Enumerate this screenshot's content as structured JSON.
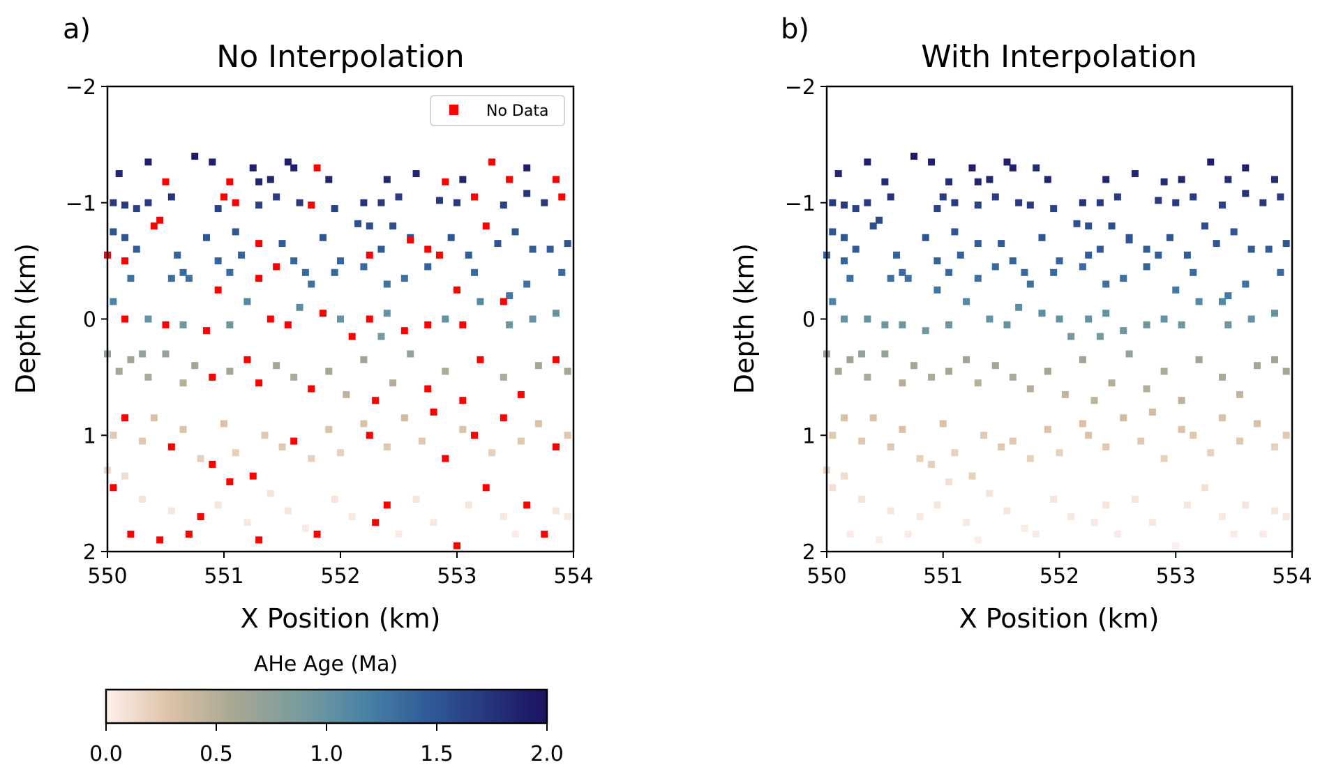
{
  "chart_data": {
    "type": "scatter",
    "panels": [
      {
        "label": "a)",
        "title": "No Interpolation",
        "show_nodata": true
      },
      {
        "label": "b)",
        "title": "With Interpolation",
        "show_nodata": false
      }
    ],
    "xlabel": "X Position (km)",
    "ylabel": "Depth (km)",
    "xlim": [
      550,
      554
    ],
    "ylim": [
      -2,
      2
    ],
    "y_inverted": true,
    "xticks": [
      "550",
      "551",
      "552",
      "553",
      "554"
    ],
    "yticks": [
      "−2",
      "−1",
      "0",
      "1",
      "2"
    ],
    "grid": false,
    "legend": {
      "label": "No Data",
      "color": "#ff0000",
      "placement": "top-right"
    },
    "colorbar": {
      "label": "AHe Age (Ma)",
      "range": [
        0,
        2
      ],
      "ticks": [
        "0.0",
        "0.5",
        "1.0",
        "1.5",
        "2.0"
      ],
      "stops": [
        "#fdf0ec",
        "#ddc2a8",
        "#a9a893",
        "#7c9d9c",
        "#4d86a6",
        "#31609a",
        "#27387f",
        "#1a1260"
      ],
      "placement": "bottom-left"
    },
    "points_format": [
      "x_km",
      "depth_km",
      "age_Ma",
      "no_data"
    ],
    "points": [
      [
        550.1,
        -1.25,
        1.85,
        0
      ],
      [
        550.35,
        -1.35,
        1.9,
        0
      ],
      [
        550.75,
        -1.4,
        1.95,
        0
      ],
      [
        550.9,
        -1.35,
        1.9,
        0
      ],
      [
        551.05,
        -1.18,
        1.8,
        1
      ],
      [
        551.25,
        -1.3,
        1.9,
        0
      ],
      [
        551.3,
        -1.18,
        1.85,
        0
      ],
      [
        551.4,
        -1.2,
        1.85,
        0
      ],
      [
        551.55,
        -1.35,
        1.9,
        0
      ],
      [
        551.6,
        -1.3,
        1.9,
        0
      ],
      [
        551.8,
        -1.3,
        1.8,
        1
      ],
      [
        551.9,
        -1.2,
        1.85,
        0
      ],
      [
        552.2,
        -1.0,
        1.75,
        0
      ],
      [
        552.4,
        -1.2,
        1.85,
        0
      ],
      [
        552.65,
        -1.25,
        1.85,
        0
      ],
      [
        552.9,
        -1.18,
        1.8,
        1
      ],
      [
        553.05,
        -1.2,
        1.85,
        0
      ],
      [
        553.3,
        -1.35,
        1.9,
        1
      ],
      [
        553.45,
        -1.2,
        1.8,
        1
      ],
      [
        553.6,
        -1.3,
        1.9,
        0
      ],
      [
        553.85,
        -1.2,
        1.8,
        1
      ],
      [
        550.5,
        -1.18,
        1.8,
        1
      ],
      [
        551.0,
        -1.05,
        1.7,
        1
      ],
      [
        550.05,
        -1.0,
        1.7,
        0
      ],
      [
        550.15,
        -0.98,
        1.7,
        0
      ],
      [
        550.25,
        -0.95,
        1.65,
        0
      ],
      [
        550.35,
        -1.0,
        1.7,
        0
      ],
      [
        550.45,
        -0.85,
        1.6,
        1
      ],
      [
        550.55,
        -1.05,
        1.75,
        0
      ],
      [
        550.95,
        -0.95,
        1.65,
        0
      ],
      [
        551.1,
        -1.0,
        1.7,
        1
      ],
      [
        551.3,
        -0.98,
        1.65,
        0
      ],
      [
        551.45,
        -1.05,
        1.7,
        0
      ],
      [
        551.65,
        -1.0,
        1.7,
        0
      ],
      [
        551.75,
        -0.98,
        1.7,
        1
      ],
      [
        551.95,
        -0.95,
        1.65,
        0
      ],
      [
        552.35,
        -1.0,
        1.7,
        0
      ],
      [
        552.5,
        -1.05,
        1.7,
        0
      ],
      [
        552.85,
        -1.02,
        1.7,
        0
      ],
      [
        553.0,
        -1.0,
        1.7,
        0
      ],
      [
        553.15,
        -1.05,
        1.7,
        1
      ],
      [
        553.6,
        -1.08,
        1.75,
        0
      ],
      [
        553.75,
        -1.0,
        1.7,
        0
      ],
      [
        553.9,
        -1.05,
        1.7,
        1
      ],
      [
        553.4,
        -0.98,
        1.65,
        0
      ],
      [
        550.05,
        -0.75,
        1.5,
        0
      ],
      [
        550.15,
        -0.7,
        1.5,
        0
      ],
      [
        550.25,
        -0.6,
        1.45,
        0
      ],
      [
        550.4,
        -0.8,
        1.55,
        1
      ],
      [
        550.6,
        -0.55,
        1.4,
        0
      ],
      [
        550.7,
        -0.35,
        1.3,
        0
      ],
      [
        550.85,
        -0.7,
        1.5,
        0
      ],
      [
        550.95,
        -0.5,
        1.4,
        0
      ],
      [
        551.1,
        -0.75,
        1.5,
        0
      ],
      [
        551.15,
        -0.55,
        1.4,
        0
      ],
      [
        551.3,
        -0.65,
        1.45,
        1
      ],
      [
        551.5,
        -0.65,
        1.45,
        0
      ],
      [
        551.6,
        -0.5,
        1.4,
        0
      ],
      [
        551.75,
        -0.3,
        1.3,
        0
      ],
      [
        551.85,
        -0.7,
        1.5,
        0
      ],
      [
        552.0,
        -0.5,
        1.4,
        0
      ],
      [
        552.15,
        -0.82,
        1.55,
        0
      ],
      [
        552.25,
        -0.8,
        1.55,
        0
      ],
      [
        552.35,
        -0.6,
        1.45,
        0
      ],
      [
        552.45,
        -0.8,
        1.55,
        0
      ],
      [
        552.6,
        -0.7,
        1.5,
        0
      ],
      [
        552.75,
        -0.45,
        1.4,
        0
      ],
      [
        552.85,
        -0.55,
        1.45,
        1
      ],
      [
        552.95,
        -0.7,
        1.5,
        0
      ],
      [
        553.1,
        -0.55,
        1.45,
        0
      ],
      [
        553.25,
        -0.8,
        1.55,
        1
      ],
      [
        553.35,
        -0.65,
        1.5,
        0
      ],
      [
        553.5,
        -0.75,
        1.5,
        0
      ],
      [
        553.65,
        -0.6,
        1.45,
        0
      ],
      [
        553.8,
        -0.6,
        1.45,
        0
      ],
      [
        553.95,
        -0.65,
        1.5,
        0
      ],
      [
        550.0,
        -0.55,
        1.4,
        1
      ],
      [
        550.15,
        -0.5,
        1.4,
        1
      ],
      [
        550.2,
        -0.35,
        1.3,
        0
      ],
      [
        550.55,
        -0.35,
        1.3,
        0
      ],
      [
        550.65,
        -0.4,
        1.35,
        0
      ],
      [
        550.95,
        -0.25,
        1.25,
        1
      ],
      [
        551.05,
        -0.4,
        1.35,
        0
      ],
      [
        551.3,
        -0.35,
        1.3,
        1
      ],
      [
        551.45,
        -0.45,
        1.35,
        1
      ],
      [
        551.7,
        -0.4,
        1.35,
        0
      ],
      [
        551.95,
        -0.4,
        1.35,
        0
      ],
      [
        552.2,
        -0.45,
        1.35,
        0
      ],
      [
        552.4,
        -0.3,
        1.3,
        0
      ],
      [
        552.55,
        -0.35,
        1.3,
        0
      ],
      [
        552.75,
        -0.6,
        1.45,
        1
      ],
      [
        553.0,
        -0.25,
        1.25,
        1
      ],
      [
        553.15,
        -0.4,
        1.35,
        0
      ],
      [
        553.45,
        -0.2,
        1.25,
        0
      ],
      [
        553.6,
        -0.3,
        1.3,
        0
      ],
      [
        553.9,
        -0.4,
        1.35,
        0
      ],
      [
        552.25,
        -0.55,
        1.45,
        1
      ],
      [
        552.6,
        -0.68,
        1.5,
        1
      ],
      [
        550.05,
        -0.15,
        1.15,
        0
      ],
      [
        550.15,
        0.0,
        1.0,
        1
      ],
      [
        550.35,
        0.0,
        1.0,
        0
      ],
      [
        550.5,
        0.05,
        0.95,
        1
      ],
      [
        550.65,
        0.05,
        0.95,
        0
      ],
      [
        550.85,
        0.1,
        0.9,
        1
      ],
      [
        551.05,
        0.05,
        0.95,
        0
      ],
      [
        551.2,
        -0.15,
        1.1,
        0
      ],
      [
        551.4,
        0.0,
        1.0,
        1
      ],
      [
        551.55,
        0.05,
        1.0,
        1
      ],
      [
        551.65,
        -0.1,
        1.05,
        0
      ],
      [
        551.85,
        -0.05,
        1.05,
        1
      ],
      [
        552.0,
        0.0,
        1.0,
        0
      ],
      [
        552.1,
        0.15,
        0.9,
        1
      ],
      [
        552.25,
        0.0,
        1.0,
        1
      ],
      [
        552.4,
        -0.05,
        1.0,
        0
      ],
      [
        552.55,
        0.1,
        0.95,
        1
      ],
      [
        552.75,
        0.05,
        0.95,
        1
      ],
      [
        552.9,
        0.0,
        1.0,
        0
      ],
      [
        553.05,
        0.05,
        0.95,
        1
      ],
      [
        553.2,
        -0.15,
        1.1,
        0
      ],
      [
        553.45,
        0.05,
        0.95,
        0
      ],
      [
        553.65,
        0.0,
        1.0,
        0
      ],
      [
        553.85,
        -0.05,
        1.0,
        0
      ],
      [
        552.35,
        0.15,
        0.9,
        0
      ],
      [
        553.4,
        -0.15,
        1.1,
        1
      ],
      [
        550.0,
        0.3,
        0.7,
        0
      ],
      [
        550.1,
        0.45,
        0.6,
        0
      ],
      [
        550.2,
        0.35,
        0.65,
        0
      ],
      [
        550.35,
        0.5,
        0.55,
        0
      ],
      [
        550.5,
        0.3,
        0.7,
        0
      ],
      [
        550.65,
        0.55,
        0.5,
        0
      ],
      [
        550.75,
        0.4,
        0.6,
        0
      ],
      [
        550.9,
        0.5,
        0.55,
        1
      ],
      [
        551.05,
        0.45,
        0.6,
        0
      ],
      [
        551.2,
        0.35,
        0.65,
        1
      ],
      [
        551.3,
        0.55,
        0.5,
        1
      ],
      [
        551.45,
        0.4,
        0.6,
        0
      ],
      [
        551.6,
        0.5,
        0.55,
        0
      ],
      [
        551.75,
        0.6,
        0.5,
        1
      ],
      [
        551.9,
        0.45,
        0.6,
        0
      ],
      [
        552.05,
        0.65,
        0.45,
        0
      ],
      [
        552.2,
        0.35,
        0.65,
        0
      ],
      [
        552.3,
        0.7,
        0.45,
        1
      ],
      [
        552.45,
        0.55,
        0.5,
        0
      ],
      [
        552.6,
        0.3,
        0.7,
        0
      ],
      [
        552.75,
        0.6,
        0.5,
        1
      ],
      [
        552.9,
        0.45,
        0.55,
        0
      ],
      [
        553.05,
        0.7,
        0.45,
        1
      ],
      [
        553.2,
        0.35,
        0.65,
        1
      ],
      [
        553.4,
        0.5,
        0.55,
        0
      ],
      [
        553.55,
        0.65,
        0.45,
        1
      ],
      [
        553.7,
        0.4,
        0.6,
        0
      ],
      [
        553.85,
        0.35,
        0.65,
        1
      ],
      [
        553.95,
        0.45,
        0.6,
        0
      ],
      [
        550.3,
        0.3,
        0.7,
        0
      ],
      [
        550.05,
        1.0,
        0.25,
        0
      ],
      [
        550.15,
        0.85,
        0.3,
        1
      ],
      [
        550.3,
        1.05,
        0.25,
        0
      ],
      [
        550.4,
        0.85,
        0.3,
        0
      ],
      [
        550.55,
        1.1,
        0.25,
        1
      ],
      [
        550.65,
        0.95,
        0.3,
        0
      ],
      [
        550.8,
        1.2,
        0.2,
        0
      ],
      [
        550.9,
        1.25,
        0.2,
        1
      ],
      [
        551.0,
        0.9,
        0.3,
        0
      ],
      [
        551.1,
        1.15,
        0.2,
        0
      ],
      [
        551.25,
        1.35,
        0.2,
        1
      ],
      [
        551.35,
        1.0,
        0.25,
        0
      ],
      [
        551.5,
        1.1,
        0.25,
        0
      ],
      [
        551.6,
        1.05,
        0.25,
        1
      ],
      [
        551.75,
        1.2,
        0.2,
        0
      ],
      [
        551.9,
        0.95,
        0.3,
        0
      ],
      [
        552.0,
        1.15,
        0.2,
        0
      ],
      [
        552.2,
        0.9,
        0.3,
        0
      ],
      [
        552.25,
        1.0,
        0.3,
        1
      ],
      [
        552.4,
        1.1,
        0.25,
        0
      ],
      [
        552.55,
        0.85,
        0.35,
        0
      ],
      [
        552.7,
        1.05,
        0.25,
        0
      ],
      [
        552.8,
        0.8,
        0.35,
        1
      ],
      [
        552.9,
        1.2,
        0.2,
        1
      ],
      [
        553.05,
        0.95,
        0.3,
        0
      ],
      [
        553.15,
        1.0,
        0.25,
        1
      ],
      [
        553.3,
        1.15,
        0.2,
        0
      ],
      [
        553.4,
        0.85,
        0.3,
        1
      ],
      [
        553.55,
        1.05,
        0.25,
        0
      ],
      [
        553.7,
        0.9,
        0.3,
        0
      ],
      [
        553.85,
        1.1,
        0.2,
        1
      ],
      [
        553.95,
        1.0,
        0.25,
        0
      ],
      [
        550.05,
        1.45,
        0.1,
        1
      ],
      [
        550.2,
        1.85,
        0.03,
        1
      ],
      [
        550.3,
        1.55,
        0.08,
        0
      ],
      [
        550.45,
        1.9,
        0.02,
        1
      ],
      [
        550.55,
        1.65,
        0.06,
        0
      ],
      [
        550.7,
        1.85,
        0.03,
        1
      ],
      [
        550.8,
        1.7,
        0.05,
        1
      ],
      [
        550.95,
        1.6,
        0.07,
        0
      ],
      [
        551.05,
        1.4,
        0.1,
        1
      ],
      [
        551.2,
        1.75,
        0.05,
        0
      ],
      [
        551.3,
        1.9,
        0.02,
        1
      ],
      [
        551.4,
        1.5,
        0.08,
        0
      ],
      [
        551.55,
        1.65,
        0.06,
        0
      ],
      [
        551.7,
        1.8,
        0.04,
        0
      ],
      [
        551.8,
        1.85,
        0.03,
        1
      ],
      [
        551.95,
        1.55,
        0.07,
        0
      ],
      [
        552.1,
        1.7,
        0.05,
        0
      ],
      [
        552.3,
        1.75,
        0.05,
        1
      ],
      [
        552.4,
        1.6,
        0.07,
        1
      ],
      [
        552.5,
        1.85,
        0.03,
        0
      ],
      [
        552.65,
        1.55,
        0.07,
        0
      ],
      [
        552.8,
        1.75,
        0.05,
        0
      ],
      [
        553.0,
        1.95,
        0.01,
        1
      ],
      [
        553.1,
        1.6,
        0.06,
        0
      ],
      [
        553.25,
        1.45,
        0.1,
        1
      ],
      [
        553.4,
        1.7,
        0.05,
        0
      ],
      [
        553.5,
        1.85,
        0.03,
        0
      ],
      [
        553.6,
        1.6,
        0.07,
        1
      ],
      [
        553.75,
        1.85,
        0.03,
        1
      ],
      [
        553.85,
        1.65,
        0.06,
        0
      ],
      [
        553.95,
        1.7,
        0.05,
        0
      ],
      [
        550.0,
        1.3,
        0.15,
        0
      ],
      [
        550.15,
        1.35,
        0.12,
        0
      ]
    ]
  }
}
